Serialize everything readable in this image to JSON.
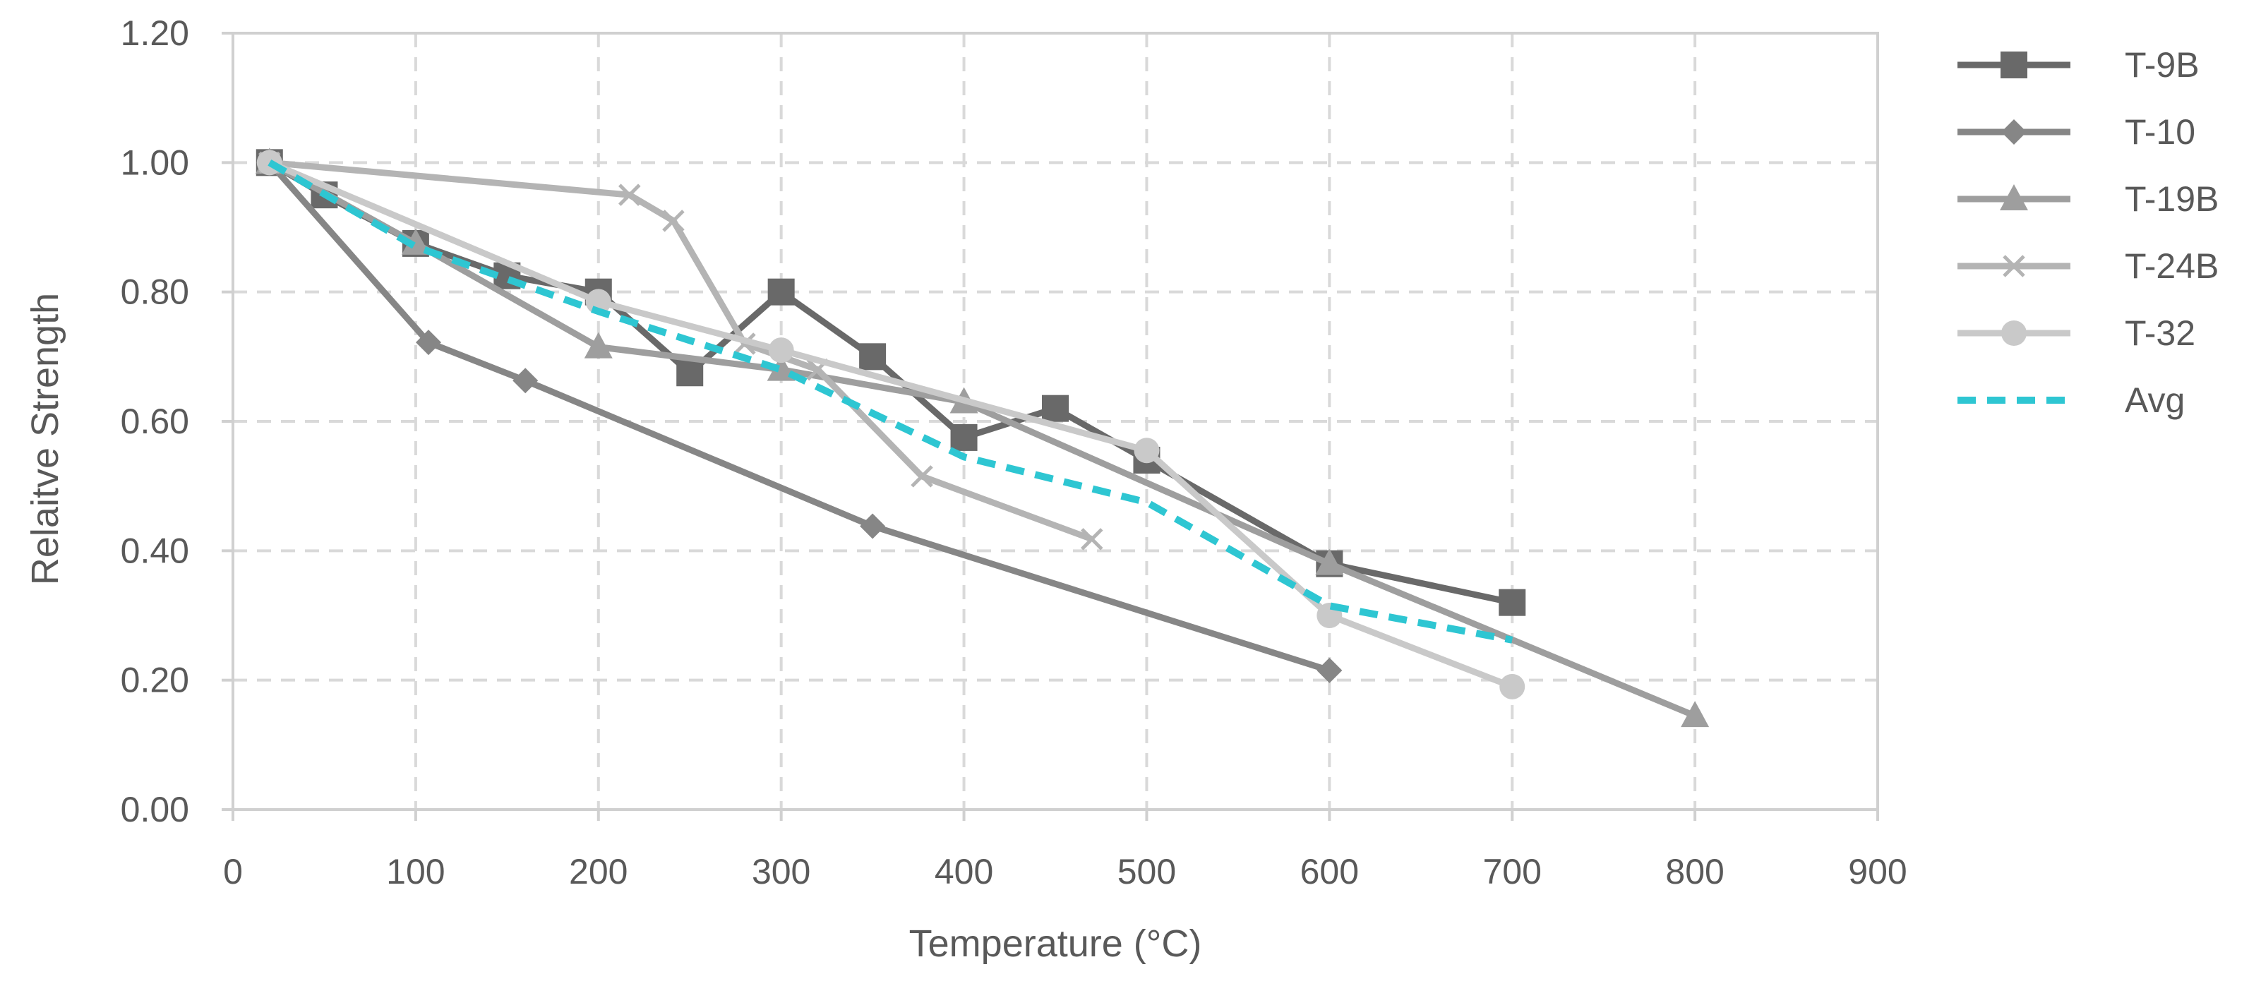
{
  "chart_data": {
    "type": "line",
    "title": "",
    "xlabel": "Temperature (°C)",
    "ylabel": "Relaitve Strength",
    "xlim": [
      0,
      900
    ],
    "ylim": [
      0,
      1.2
    ],
    "xticks": [
      0,
      100,
      200,
      300,
      400,
      500,
      600,
      700,
      800,
      900
    ],
    "xtick_labels": [
      "0",
      "100",
      "200",
      "300",
      "400",
      "500",
      "600",
      "700",
      "800",
      "900"
    ],
    "yticks": [
      0,
      0.2,
      0.4,
      0.6,
      0.8,
      1.0,
      1.2
    ],
    "ytick_labels": [
      "0.00",
      "0.20",
      "0.40",
      "0.60",
      "0.80",
      "1.00",
      "1.20"
    ],
    "grid": true,
    "legend_position": "right",
    "series": [
      {
        "name": "T-9B",
        "color": "#696969",
        "marker": "square",
        "dash": "solid",
        "points": [
          [
            20,
            1.0
          ],
          [
            50,
            0.95
          ],
          [
            100,
            0.875
          ],
          [
            150,
            0.825
          ],
          [
            200,
            0.8
          ],
          [
            250,
            0.675
          ],
          [
            300,
            0.8
          ],
          [
            350,
            0.7
          ],
          [
            400,
            0.575
          ],
          [
            450,
            0.62
          ],
          [
            500,
            0.54
          ],
          [
            600,
            0.38
          ],
          [
            700,
            0.32
          ]
        ]
      },
      {
        "name": "T-10",
        "color": "#868686",
        "marker": "diamond",
        "dash": "solid",
        "points": [
          [
            20,
            1.0
          ],
          [
            107,
            0.722
          ],
          [
            160,
            0.663
          ],
          [
            350,
            0.438
          ],
          [
            600,
            0.215
          ]
        ]
      },
      {
        "name": "T-19B",
        "color": "#9e9e9e",
        "marker": "triangle",
        "dash": "solid",
        "points": [
          [
            20,
            1.0
          ],
          [
            100,
            0.875
          ],
          [
            200,
            0.715
          ],
          [
            300,
            0.68
          ],
          [
            400,
            0.63
          ],
          [
            600,
            0.38
          ],
          [
            800,
            0.145
          ]
        ]
      },
      {
        "name": "T-24B",
        "color": "#b4b4b4",
        "marker": "x",
        "dash": "solid",
        "points": [
          [
            20,
            1.0
          ],
          [
            217,
            0.95
          ],
          [
            241,
            0.91
          ],
          [
            280,
            0.72
          ],
          [
            320,
            0.68
          ],
          [
            377,
            0.515
          ],
          [
            470,
            0.418
          ]
        ]
      },
      {
        "name": "T-32",
        "color": "#c9c9c9",
        "marker": "circle",
        "dash": "solid",
        "points": [
          [
            20,
            1.0
          ],
          [
            200,
            0.785
          ],
          [
            300,
            0.71
          ],
          [
            500,
            0.555
          ],
          [
            600,
            0.3
          ],
          [
            700,
            0.19
          ]
        ]
      },
      {
        "name": "Avg",
        "color": "#2ec6d2",
        "marker": "none",
        "dash": "dashed",
        "points": [
          [
            20,
            1.0
          ],
          [
            100,
            0.87
          ],
          [
            200,
            0.77
          ],
          [
            300,
            0.68
          ],
          [
            400,
            0.545
          ],
          [
            500,
            0.475
          ],
          [
            600,
            0.315
          ],
          [
            700,
            0.262
          ]
        ]
      }
    ]
  }
}
